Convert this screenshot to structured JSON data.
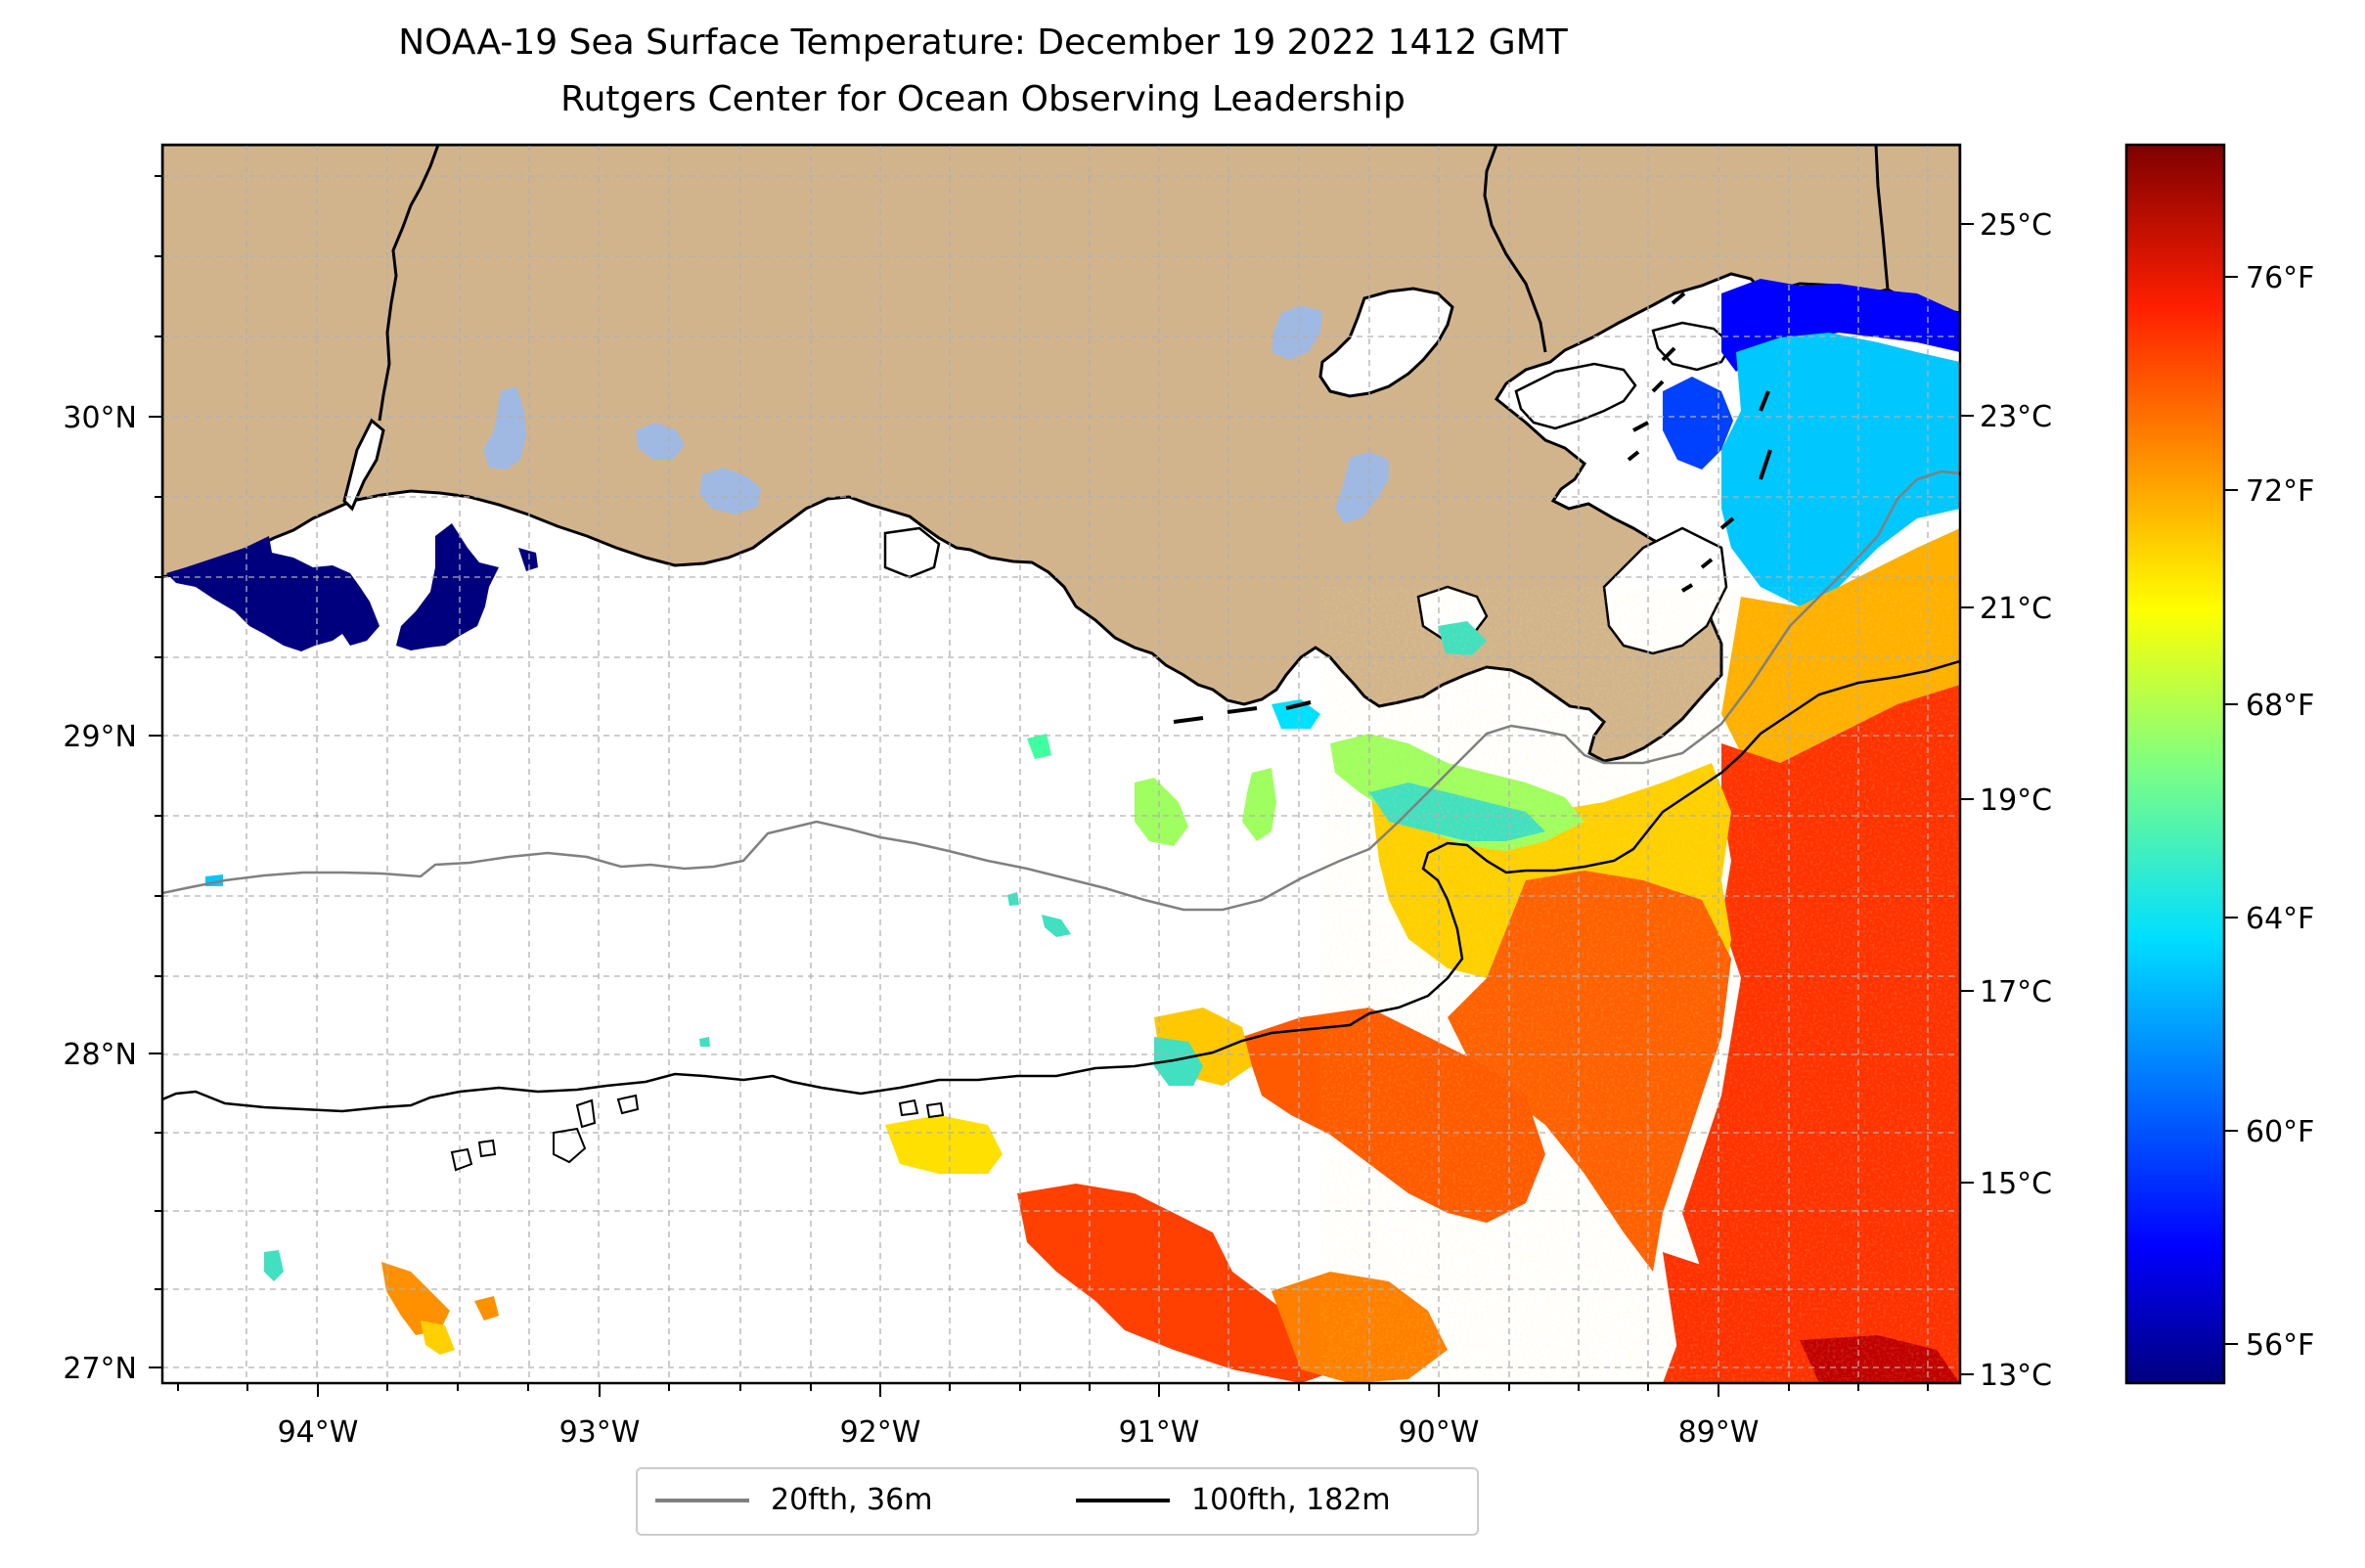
{
  "title": {
    "line1": "NOAA-19 Sea Surface Temperature: December 19 2022 1412 GMT",
    "line2": "Rutgers Center for Ocean Observing Leadership"
  },
  "map": {
    "lon_range": [
      -94.55,
      -88.2
    ],
    "lat_range": [
      26.93,
      30.83
    ],
    "land_color": "#d2b48c",
    "lake_color": "#9fb9e2",
    "gridlines": true,
    "x_ticks": [
      "94°W",
      "93°W",
      "92°W",
      "91°W",
      "90°W",
      "89°W"
    ],
    "y_ticks": [
      "27°N",
      "28°N",
      "29°N",
      "30°N"
    ]
  },
  "colorbar": {
    "colormap": "jet",
    "celsius_ticks": [
      "25°C",
      "23°C",
      "21°C",
      "19°C",
      "17°C",
      "15°C",
      "13°C"
    ],
    "fahrenheit_ticks": [
      "76°F",
      "72°F",
      "68°F",
      "64°F",
      "60°F",
      "56°F"
    ]
  },
  "legend": {
    "items": [
      {
        "label": "20fth, 36m",
        "color": "#808080"
      },
      {
        "label": "100fth, 182m",
        "color": "#000000"
      }
    ]
  }
}
